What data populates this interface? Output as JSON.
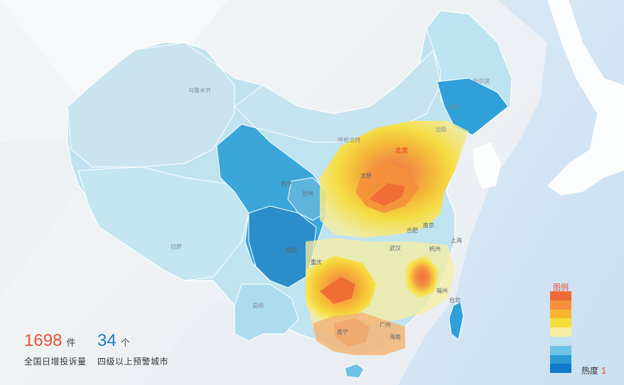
{
  "stats": [
    {
      "value": "1698",
      "unit": "件",
      "label": "全国日增投诉量"
    },
    {
      "value": "34",
      "unit": "个",
      "label": "四级以上预警城市"
    }
  ],
  "legend": {
    "title": "图例",
    "heat_label": "热度",
    "heat_value": "1",
    "colors": [
      "#ef6b35",
      "#f58f3c",
      "#f7b52f",
      "#f7dd3b",
      "#f7eda0",
      "#bfe3ef",
      "#6ec2e6",
      "#2a9ad6",
      "#0f79cc"
    ]
  },
  "cities": [
    {
      "name": "乌鲁木齐"
    },
    {
      "name": "哈尔滨"
    },
    {
      "name": "长春"
    },
    {
      "name": "沈阳"
    },
    {
      "name": "呼和浩特"
    },
    {
      "name": "北京"
    },
    {
      "name": "太原"
    },
    {
      "name": "兰州"
    },
    {
      "name": "西宁"
    },
    {
      "name": "拉萨"
    },
    {
      "name": "成都"
    },
    {
      "name": "重庆"
    },
    {
      "name": "武汉"
    },
    {
      "name": "合肥"
    },
    {
      "name": "南京"
    },
    {
      "name": "上海"
    },
    {
      "name": "杭州"
    },
    {
      "name": "福州"
    },
    {
      "name": "台北"
    },
    {
      "name": "昆明"
    },
    {
      "name": "南宁"
    },
    {
      "name": "广州"
    },
    {
      "name": "海南"
    }
  ]
}
